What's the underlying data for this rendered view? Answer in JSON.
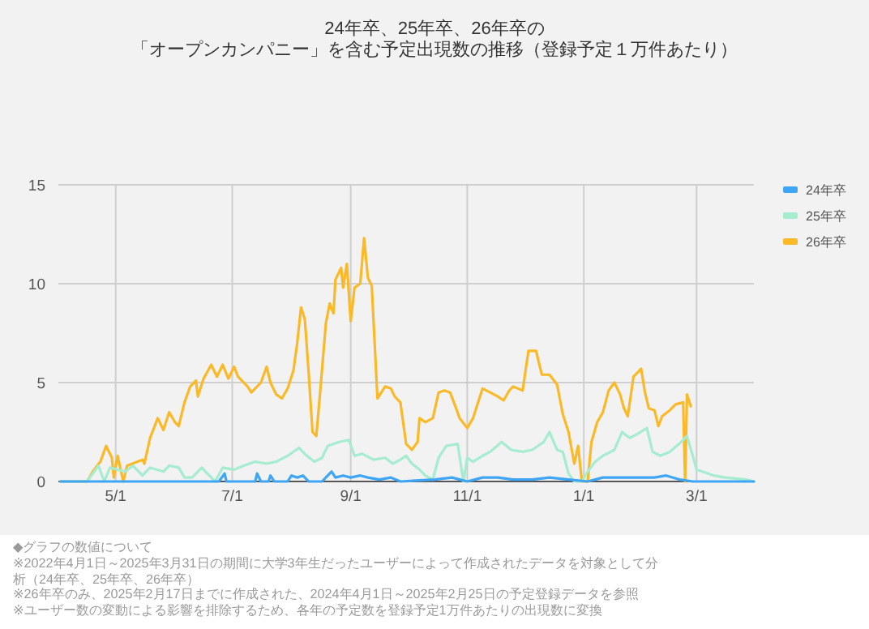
{
  "chart_data": {
    "type": "line",
    "title": "24年卒、25年卒、26年卒の",
    "subtitle": "「オープンカンパニー」を含む予定出現数の推移（登録予定１万件あたり）",
    "xlim": [
      "2024-04-01",
      "2025-03-31"
    ],
    "xticks": [
      {
        "value": "2024-05-01",
        "label": "5/1"
      },
      {
        "value": "2024-07-01",
        "label": "7/1"
      },
      {
        "value": "2024-09-01",
        "label": "9/1"
      },
      {
        "value": "2024-11-01",
        "label": "11/1"
      },
      {
        "value": "2025-01-01",
        "label": "1/1"
      },
      {
        "value": "2025-03-01",
        "label": "3/1"
      }
    ],
    "ylim": [
      0,
      15
    ],
    "yticks": [
      0,
      5,
      10,
      15
    ],
    "grid": true,
    "legend": "top right",
    "marker": "none",
    "line_style": "solid",
    "series": [
      {
        "name": "24年卒",
        "color": "#3ea6f5",
        "x": [
          "2024-04-02",
          "2024-06-24",
          "2024-06-27",
          "2024-06-28",
          "2024-07-13",
          "2024-07-14",
          "2024-07-16",
          "2024-07-20",
          "2024-07-21",
          "2024-07-23",
          "2024-07-30",
          "2024-08-01",
          "2024-08-04",
          "2024-08-07",
          "2024-08-10",
          "2024-08-17",
          "2024-08-20",
          "2024-08-22",
          "2024-08-24",
          "2024-08-28",
          "2024-09-01",
          "2024-09-06",
          "2024-09-10",
          "2024-09-16",
          "2024-09-22",
          "2024-09-27",
          "2024-10-15",
          "2024-10-24",
          "2024-11-01",
          "2024-11-09",
          "2024-11-17",
          "2024-11-25",
          "2024-12-05",
          "2024-12-14",
          "2024-12-24",
          "2025-01-03",
          "2025-01-11",
          "2025-01-20",
          "2025-01-29",
          "2025-02-07",
          "2025-02-13",
          "2025-02-20",
          "2025-02-27",
          "2025-03-31"
        ],
        "values": [
          0,
          0,
          0.4,
          0,
          0,
          0.4,
          0,
          0,
          0.3,
          0,
          0,
          0.3,
          0.2,
          0.3,
          0,
          0,
          0.3,
          0.5,
          0.2,
          0.3,
          0.2,
          0.3,
          0.2,
          0.1,
          0.2,
          0,
          0.1,
          0.2,
          0,
          0.2,
          0.2,
          0.1,
          0.1,
          0.2,
          0.1,
          0,
          0.2,
          0.2,
          0.2,
          0.2,
          0.3,
          0.1,
          0,
          0
        ]
      },
      {
        "name": "25年卒",
        "color": "#a6ecd0",
        "x": [
          "2024-04-02",
          "2024-04-16",
          "2024-04-22",
          "2024-04-25",
          "2024-04-28",
          "2024-05-06",
          "2024-05-10",
          "2024-05-15",
          "2024-05-19",
          "2024-05-26",
          "2024-05-29",
          "2024-06-03",
          "2024-06-06",
          "2024-06-10",
          "2024-06-15",
          "2024-06-19",
          "2024-06-22",
          "2024-06-26",
          "2024-07-02",
          "2024-07-07",
          "2024-07-13",
          "2024-07-19",
          "2024-07-24",
          "2024-07-30",
          "2024-08-05",
          "2024-08-09",
          "2024-08-13",
          "2024-08-17",
          "2024-08-20",
          "2024-08-26",
          "2024-08-31",
          "2024-09-03",
          "2024-09-07",
          "2024-09-13",
          "2024-09-19",
          "2024-09-23",
          "2024-09-27",
          "2024-09-30",
          "2024-10-03",
          "2024-10-07",
          "2024-10-10",
          "2024-10-14",
          "2024-10-17",
          "2024-10-21",
          "2024-10-27",
          "2024-10-29",
          "2024-10-30",
          "2024-11-01",
          "2024-11-04",
          "2024-11-09",
          "2024-11-13",
          "2024-11-19",
          "2024-11-24",
          "2024-11-30",
          "2024-12-05",
          "2024-12-11",
          "2024-12-14",
          "2024-12-18",
          "2024-12-21",
          "2024-12-24",
          "2024-12-27",
          "2024-12-31",
          "2025-01-03",
          "2025-01-07",
          "2025-01-11",
          "2025-01-17",
          "2025-01-21",
          "2025-01-25",
          "2025-01-29",
          "2025-02-03",
          "2025-02-06",
          "2025-02-10",
          "2025-02-15",
          "2025-02-21",
          "2025-02-24",
          "2025-02-27",
          "2025-03-01",
          "2025-03-04",
          "2025-03-10",
          "2025-03-16",
          "2025-03-27",
          "2025-03-31"
        ],
        "values": [
          0,
          0,
          0.8,
          0,
          0.7,
          0.5,
          0.8,
          0.3,
          0.7,
          0.5,
          0.8,
          0.7,
          0.2,
          0.2,
          0.7,
          0.3,
          0,
          0.7,
          0.6,
          0.8,
          1.0,
          0.9,
          1.0,
          1.3,
          1.7,
          1.3,
          1.0,
          1.2,
          1.8,
          2.0,
          2.1,
          1.3,
          1.4,
          1.1,
          1.2,
          0.9,
          1.1,
          1.3,
          0.9,
          0.6,
          0.3,
          0.1,
          1.2,
          1.8,
          1.9,
          0.6,
          0,
          1.2,
          1.0,
          1.3,
          1.5,
          2.0,
          1.6,
          1.5,
          1.6,
          2.0,
          2.5,
          1.6,
          1.5,
          0.4,
          0,
          0,
          0.5,
          1.0,
          1.3,
          1.6,
          2.5,
          2.2,
          2.4,
          2.7,
          1.5,
          1.3,
          1.5,
          2.0,
          2.3,
          1.3,
          0.6,
          0.5,
          0.3,
          0.2,
          0.1,
          0
        ]
      },
      {
        "name": "26年卒",
        "color": "#fbb928",
        "x": [
          "2024-04-02",
          "2024-04-16",
          "2024-04-19",
          "2024-04-23",
          "2024-04-26",
          "2024-04-29",
          "2024-04-30",
          "2024-05-02",
          "2024-05-05",
          "2024-05-07",
          "2024-05-15",
          "2024-05-16",
          "2024-05-19",
          "2024-05-23",
          "2024-05-26",
          "2024-05-29",
          "2024-06-01",
          "2024-06-03",
          "2024-06-06",
          "2024-06-09",
          "2024-06-12",
          "2024-06-13",
          "2024-06-16",
          "2024-06-20",
          "2024-06-23",
          "2024-06-26",
          "2024-06-29",
          "2024-07-02",
          "2024-07-04",
          "2024-07-09",
          "2024-07-11",
          "2024-07-16",
          "2024-07-19",
          "2024-07-21",
          "2024-07-24",
          "2024-07-27",
          "2024-07-30",
          "2024-08-02",
          "2024-08-04",
          "2024-08-06",
          "2024-08-08",
          "2024-08-10",
          "2024-08-12",
          "2024-08-14",
          "2024-08-16",
          "2024-08-19",
          "2024-08-21",
          "2024-08-23",
          "2024-08-24",
          "2024-08-27",
          "2024-08-28",
          "2024-08-30",
          "2024-09-01",
          "2024-09-03",
          "2024-09-06",
          "2024-09-08",
          "2024-09-10",
          "2024-09-12",
          "2024-09-15",
          "2024-09-19",
          "2024-09-22",
          "2024-09-24",
          "2024-09-27",
          "2024-09-30",
          "2024-10-03",
          "2024-10-06",
          "2024-10-07",
          "2024-10-10",
          "2024-10-14",
          "2024-10-17",
          "2024-10-20",
          "2024-10-23",
          "2024-10-25",
          "2024-10-28",
          "2024-11-01",
          "2024-11-04",
          "2024-11-09",
          "2024-11-13",
          "2024-11-17",
          "2024-11-20",
          "2024-11-23",
          "2024-11-25",
          "2024-11-30",
          "2024-12-03",
          "2024-12-07",
          "2024-12-10",
          "2024-12-14",
          "2024-12-18",
          "2024-12-21",
          "2024-12-24",
          "2024-12-27",
          "2024-12-29",
          "2024-12-31",
          "2025-01-03",
          "2025-01-05",
          "2025-01-08",
          "2025-01-11",
          "2025-01-14",
          "2025-01-17",
          "2025-01-20",
          "2025-01-22",
          "2025-01-24",
          "2025-01-27",
          "2025-01-29",
          "2025-01-31",
          "2025-02-02",
          "2025-02-04",
          "2025-02-07",
          "2025-02-09",
          "2025-02-11",
          "2025-02-15",
          "2025-02-18",
          "2025-02-22",
          "2025-02-23",
          "2025-02-24",
          "2025-02-26"
        ],
        "values": [
          0,
          0,
          0.5,
          1.0,
          1.8,
          1.2,
          0.2,
          1.3,
          0,
          0.8,
          1.1,
          0.9,
          2.2,
          3.2,
          2.6,
          3.5,
          3.0,
          2.8,
          4.0,
          4.8,
          5.1,
          4.3,
          5.2,
          5.9,
          5.3,
          5.9,
          5.2,
          5.8,
          5.3,
          4.8,
          4.5,
          5.0,
          5.8,
          5.0,
          4.4,
          4.2,
          4.7,
          5.6,
          7.0,
          8.8,
          8.2,
          5.5,
          2.5,
          2.3,
          4.5,
          8.0,
          9.0,
          8.5,
          10.2,
          10.8,
          9.8,
          11.0,
          8.1,
          9.8,
          10.0,
          12.3,
          10.3,
          9.9,
          4.2,
          4.8,
          4.7,
          4.3,
          4.0,
          1.9,
          1.6,
          2.0,
          3.2,
          3.0,
          3.2,
          4.5,
          4.6,
          4.5,
          4.0,
          3.2,
          2.7,
          3.2,
          4.7,
          4.5,
          4.3,
          4.1,
          4.6,
          4.8,
          4.6,
          6.6,
          6.6,
          5.4,
          5.4,
          4.9,
          3.4,
          2.5,
          0.9,
          1.8,
          0,
          0,
          2.0,
          3.0,
          3.5,
          4.6,
          5.0,
          4.4,
          3.7,
          3.3,
          5.3,
          5.5,
          5.7,
          4.5,
          3.7,
          3.6,
          2.8,
          3.3,
          3.6,
          3.9,
          4.0,
          0,
          4.4,
          3.8
        ]
      }
    ],
    "annotations": [
      "◆グラフの数値について",
      "※2022年4月1日～2025年3月31日の期間に大学3年生だったユーザーによって作成されたデータを対象として分析（24年卒、25年卒、26年卒）",
      "※26年卒のみ、2025年2月17日までに作成された、2024年4月1日～2025年2月25日の予定登録データを参照",
      "※ユーザー数の変動による影響を排除するため、各年の予定数を登録予定1万件あたりの出現数に変換"
    ]
  }
}
